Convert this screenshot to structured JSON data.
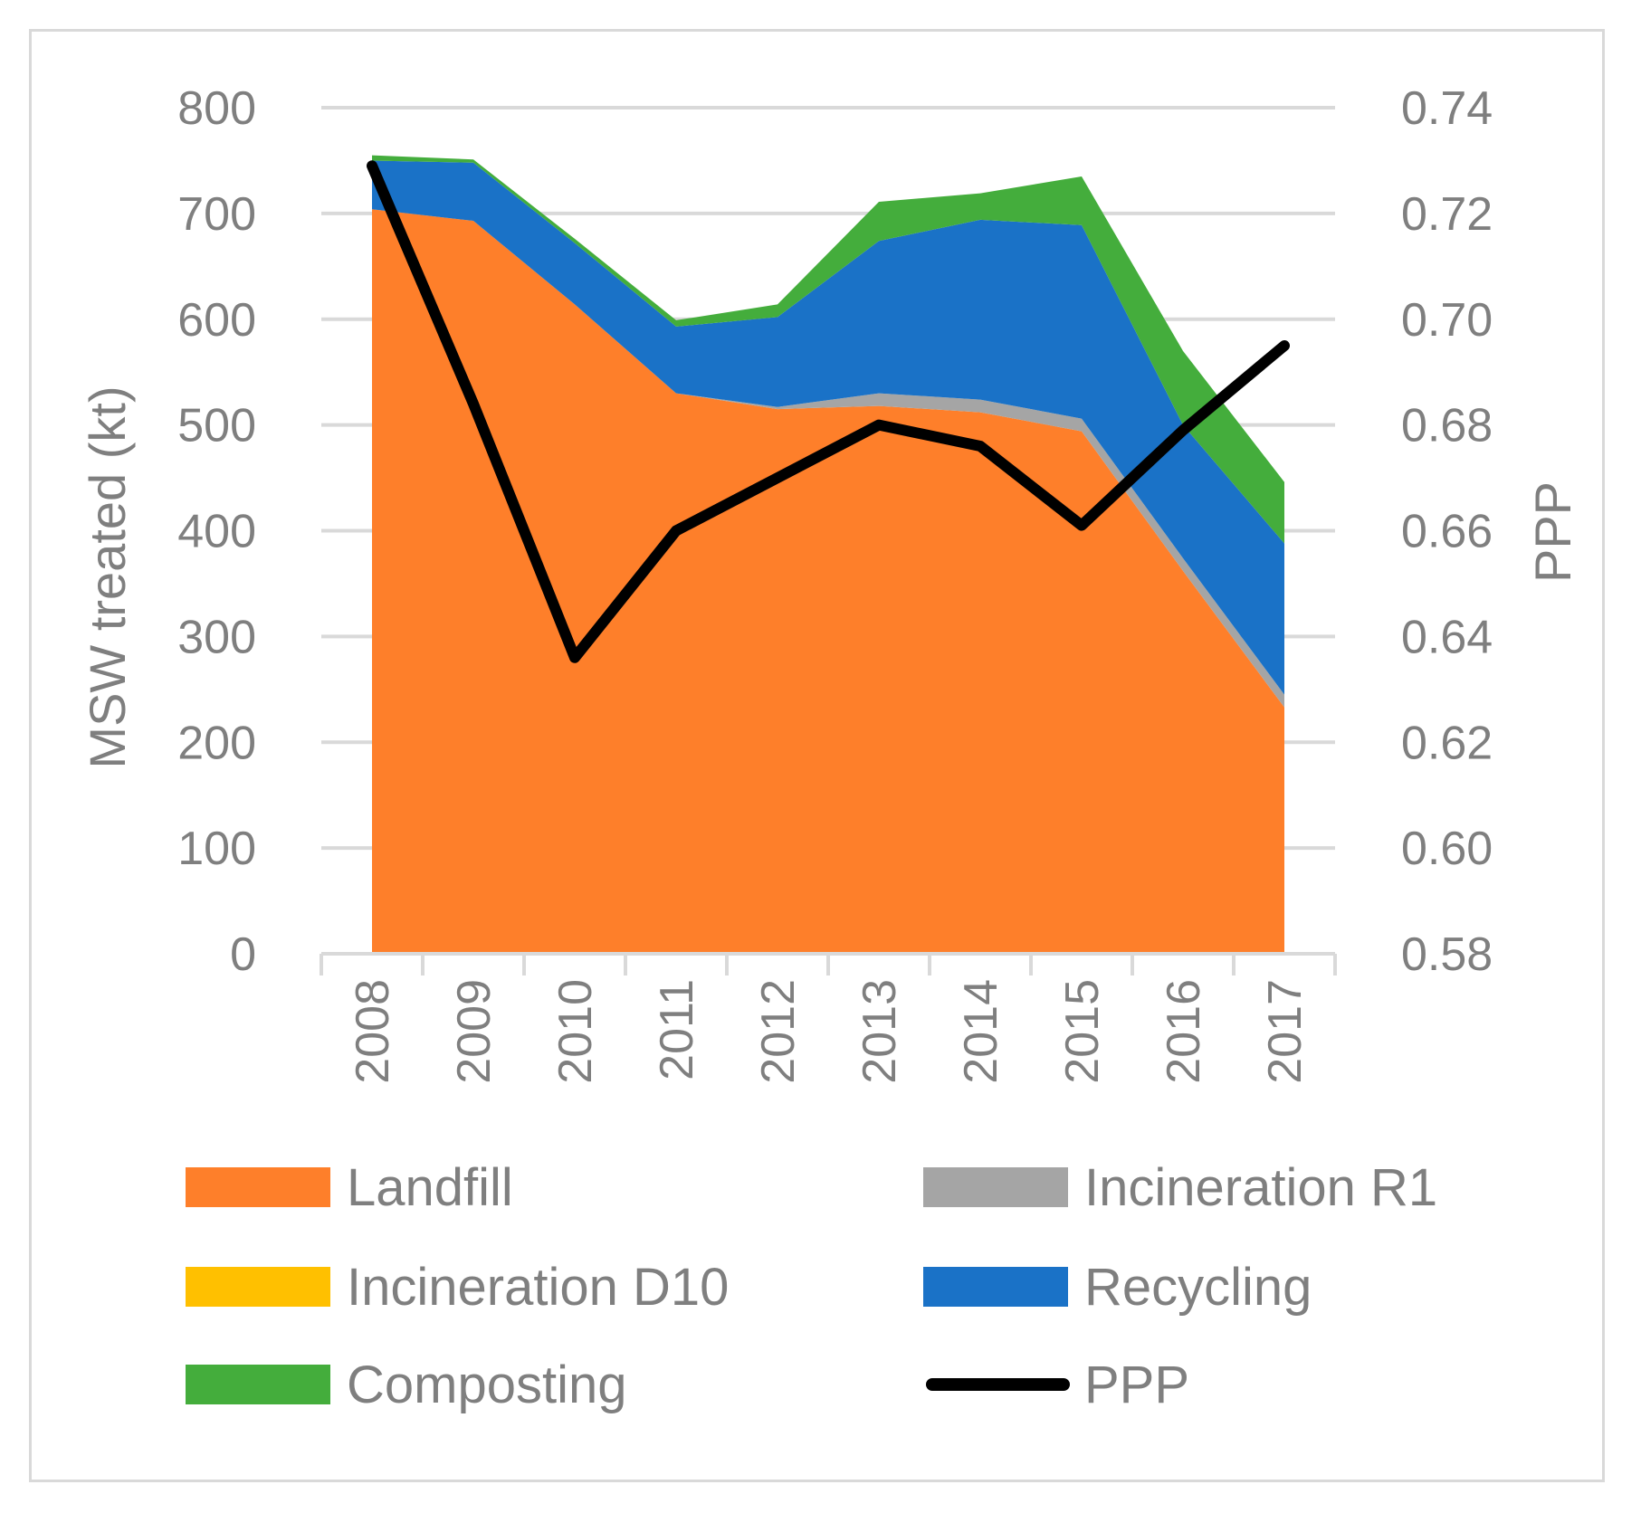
{
  "chart_data": {
    "type": "area",
    "title": "",
    "categories": [
      "2008",
      "2009",
      "2010",
      "2011",
      "2012",
      "2013",
      "2014",
      "2015",
      "2016",
      "2017"
    ],
    "series": [
      {
        "name": "Landfill",
        "kind": "stacked-area",
        "axis": "left",
        "color": "#fe7f2a",
        "values": [
          704,
          693,
          614,
          530,
          515,
          518,
          512,
          494,
          362,
          233
        ]
      },
      {
        "name": "Incineration R1",
        "kind": "stacked-area",
        "axis": "left",
        "color": "#a5a5a5",
        "values": [
          0,
          0,
          0,
          0,
          2,
          12,
          12,
          12,
          12,
          12
        ]
      },
      {
        "name": "Incineration D10",
        "kind": "stacked-area",
        "axis": "left",
        "color": "#ffc000",
        "values": [
          0,
          0,
          0,
          0,
          0,
          0,
          0,
          0,
          0,
          0
        ]
      },
      {
        "name": "Recycling",
        "kind": "stacked-area",
        "axis": "left",
        "color": "#1a72c7",
        "values": [
          46,
          55,
          58,
          63,
          85,
          144,
          170,
          183,
          126,
          143
        ]
      },
      {
        "name": "Composting",
        "kind": "stacked-area",
        "axis": "left",
        "color": "#44ad3c",
        "values": [
          5,
          3,
          4,
          6,
          12,
          37,
          25,
          46,
          70,
          58
        ]
      },
      {
        "name": "PPP",
        "kind": "line",
        "axis": "right",
        "color": "#000000",
        "values": [
          0.729,
          0.684,
          0.636,
          0.66,
          0.67,
          0.68,
          0.676,
          0.661,
          0.679,
          0.695
        ]
      }
    ],
    "left_axis": {
      "label": "MSW treated (kt)",
      "ylim": [
        0,
        800
      ],
      "ticks": [
        "0",
        "100",
        "200",
        "300",
        "400",
        "500",
        "600",
        "700",
        "800"
      ]
    },
    "right_axis": {
      "label": "PPP",
      "ylim": [
        0.58,
        0.74
      ],
      "ticks": [
        "0.58",
        "0.60",
        "0.62",
        "0.64",
        "0.66",
        "0.68",
        "0.70",
        "0.72",
        "0.74"
      ]
    },
    "grid": "horizontal",
    "legend_position": "bottom"
  }
}
